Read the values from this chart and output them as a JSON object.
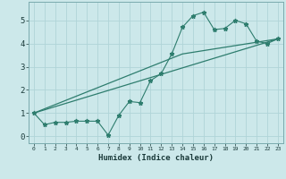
{
  "title": "",
  "xlabel": "Humidex (Indice chaleur)",
  "ylabel": "",
  "xlim": [
    -0.5,
    23.5
  ],
  "ylim": [
    -0.3,
    5.8
  ],
  "xticks": [
    0,
    1,
    2,
    3,
    4,
    5,
    6,
    7,
    8,
    9,
    10,
    11,
    12,
    13,
    14,
    15,
    16,
    17,
    18,
    19,
    20,
    21,
    22,
    23
  ],
  "yticks": [
    0,
    1,
    2,
    3,
    4,
    5
  ],
  "background_color": "#cce8ea",
  "grid_color": "#b0d4d8",
  "line_color": "#2e7d6e",
  "line1_x": [
    0,
    1,
    2,
    3,
    4,
    5,
    6,
    7,
    8,
    9,
    10,
    11,
    12,
    13,
    14,
    15,
    16,
    17,
    18,
    19,
    20,
    21,
    22,
    23
  ],
  "line1_y": [
    1.0,
    0.5,
    0.6,
    0.6,
    0.65,
    0.65,
    0.65,
    0.05,
    0.9,
    1.5,
    1.45,
    2.4,
    2.7,
    3.55,
    4.7,
    5.2,
    5.35,
    4.6,
    4.65,
    5.0,
    4.85,
    4.1,
    4.0,
    4.2
  ],
  "line2_x": [
    0,
    23
  ],
  "line2_y": [
    1.0,
    4.2
  ],
  "line3_x": [
    0,
    14,
    23
  ],
  "line3_y": [
    1.0,
    3.55,
    4.2
  ]
}
